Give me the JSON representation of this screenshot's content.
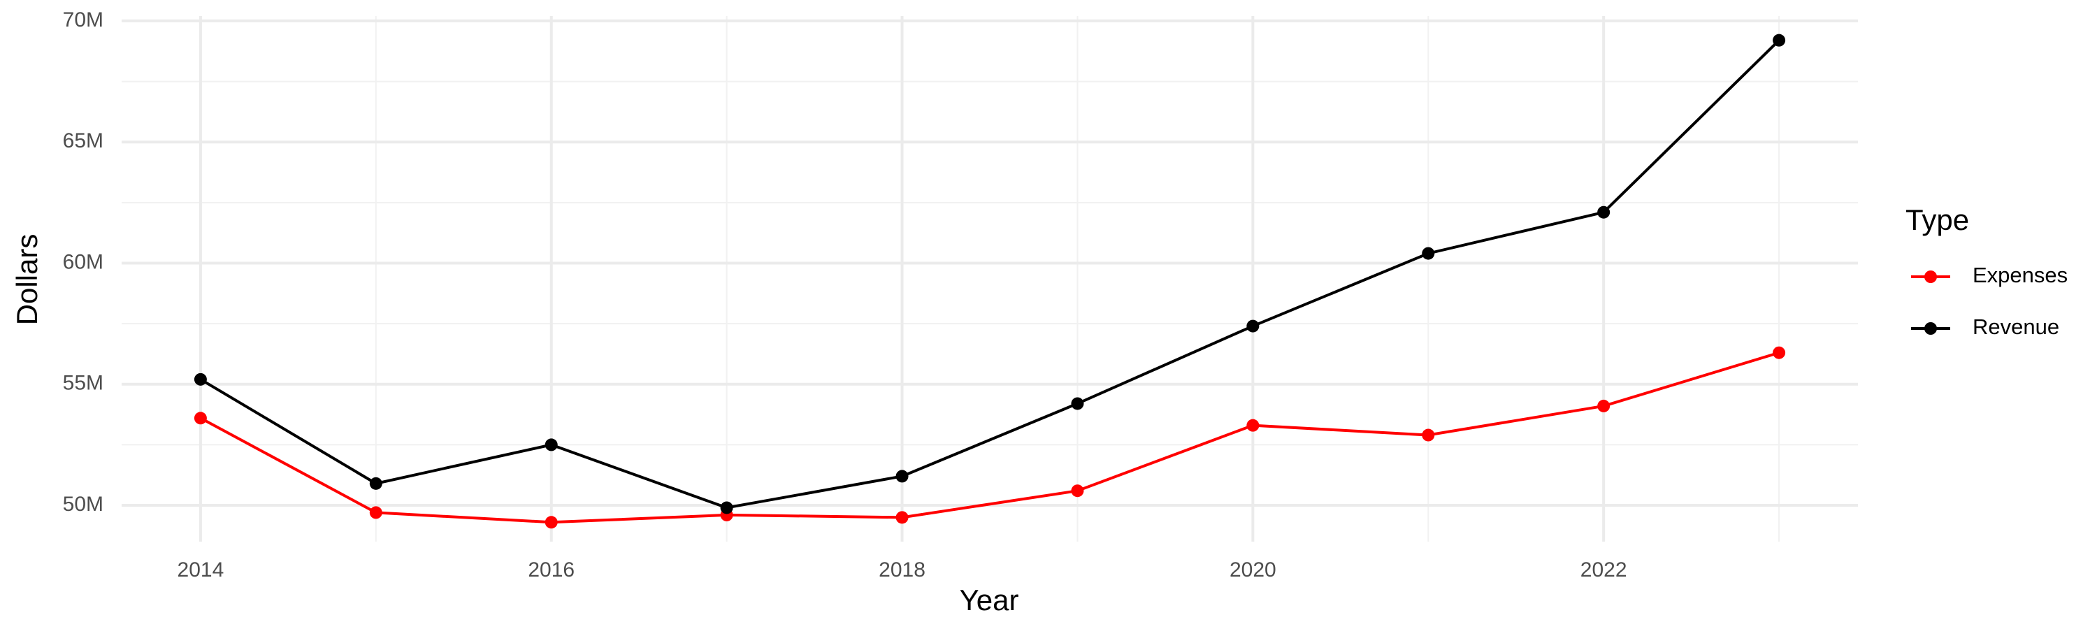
{
  "chart_data": {
    "type": "line",
    "x_label": "Year",
    "y_label": "Dollars",
    "legend_title": "Type",
    "x": [
      2014,
      2015,
      2016,
      2017,
      2018,
      2019,
      2020,
      2021,
      2022,
      2023
    ],
    "series": [
      {
        "name": "Expenses",
        "color": "#ff0000",
        "values": [
          53600000,
          49700000,
          49300000,
          49600000,
          49500000,
          50600000,
          53300000,
          52900000,
          54100000,
          56300000
        ]
      },
      {
        "name": "Revenue",
        "color": "#000000",
        "values": [
          55200000,
          50900000,
          52500000,
          49900000,
          51200000,
          54200000,
          57400000,
          60400000,
          62100000,
          69200000
        ]
      }
    ],
    "xlim": [
      2013.55,
      2023.45
    ],
    "xticks": [
      2014,
      2016,
      2018,
      2020,
      2022
    ],
    "x_minor_ticks": [
      2015,
      2017,
      2019,
      2021,
      2023
    ],
    "ylim": [
      48500000,
      70200000
    ],
    "yticks": [
      {
        "value": 50000000,
        "label": "50M"
      },
      {
        "value": 55000000,
        "label": "55M"
      },
      {
        "value": 60000000,
        "label": "60M"
      },
      {
        "value": 65000000,
        "label": "65M"
      },
      {
        "value": 70000000,
        "label": "70M"
      }
    ],
    "y_minor_ticks": [
      52500000,
      57500000,
      62500000,
      67500000
    ],
    "grid": true,
    "legend_position": "right"
  }
}
